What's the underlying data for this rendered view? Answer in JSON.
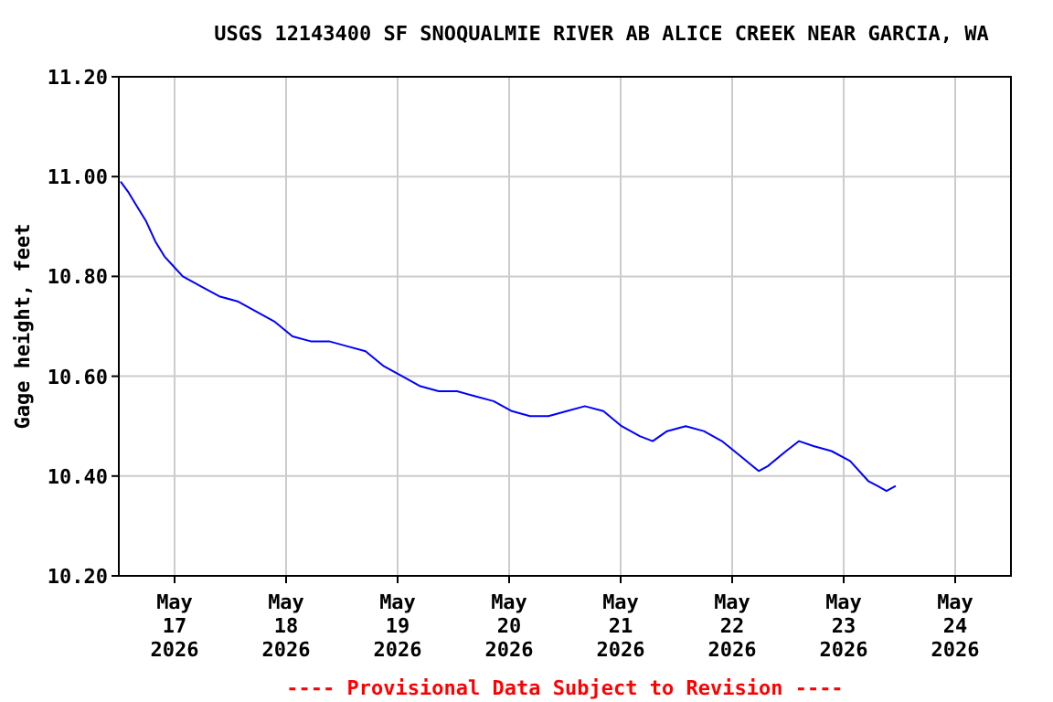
{
  "chart_data": {
    "type": "line",
    "title": "USGS 12143400 SF SNOQUALMIE RIVER AB ALICE CREEK NEAR GARCIA, WA",
    "ylabel": "Gage height, feet",
    "annotations": [
      "---- Provisional Data Subject to Revision ----"
    ],
    "xlim": [
      "2026-05-16T12:00",
      "2026-05-24T12:00"
    ],
    "xticks": [
      {
        "value": "2026-05-17",
        "label": "May\n17\n2026"
      },
      {
        "value": "2026-05-18",
        "label": "May\n18\n2026"
      },
      {
        "value": "2026-05-19",
        "label": "May\n19\n2026"
      },
      {
        "value": "2026-05-20",
        "label": "May\n20\n2026"
      },
      {
        "value": "2026-05-21",
        "label": "May\n21\n2026"
      },
      {
        "value": "2026-05-22",
        "label": "May\n22\n2026"
      },
      {
        "value": "2026-05-23",
        "label": "May\n23\n2026"
      },
      {
        "value": "2026-05-24",
        "label": "May\n24\n2026"
      }
    ],
    "ylim": [
      10.2,
      11.2
    ],
    "yticks": [
      {
        "value": 10.2,
        "label": "10.20"
      },
      {
        "value": 10.4,
        "label": "10.40"
      },
      {
        "value": 10.6,
        "label": "10.60"
      },
      {
        "value": 10.8,
        "label": "10.80"
      },
      {
        "value": 11.0,
        "label": "11.00"
      },
      {
        "value": 11.2,
        "label": "11.20"
      }
    ],
    "grid": true,
    "marker": "none",
    "line_style": "solid",
    "series": [
      {
        "color": "#0000ff",
        "x": [
          "2026-05-16T12:23",
          "2026-05-16T13:58",
          "2026-05-16T15:56",
          "2026-05-16T17:54",
          "2026-05-16T19:52",
          "2026-05-16T21:50",
          "2026-05-16T23:48",
          "2026-05-17T01:46",
          "2026-05-17T03:44",
          "2026-05-17T05:42",
          "2026-05-17T09:38",
          "2026-05-17T13:34",
          "2026-05-17T17:30",
          "2026-05-17T21:26",
          "2026-05-18T01:23",
          "2026-05-18T05:18",
          "2026-05-18T09:15",
          "2026-05-18T13:12",
          "2026-05-18T17:06",
          "2026-05-18T21:03",
          "2026-05-19T01:00",
          "2026-05-19T04:54",
          "2026-05-19T08:51",
          "2026-05-19T12:48",
          "2026-05-19T16:42",
          "2026-05-19T20:40",
          "2026-05-20T00:36",
          "2026-05-20T04:30",
          "2026-05-20T08:28",
          "2026-05-20T12:24",
          "2026-05-20T16:18",
          "2026-05-20T20:18",
          "2026-05-21T00:12",
          "2026-05-21T04:06",
          "2026-05-21T06:54",
          "2026-05-21T10:00",
          "2026-05-21T14:00",
          "2026-05-21T17:54",
          "2026-05-21T21:48",
          "2026-05-22T01:48",
          "2026-05-22T05:42",
          "2026-05-22T07:42",
          "2026-05-22T11:36",
          "2026-05-22T14:24",
          "2026-05-22T17:30",
          "2026-05-22T21:24",
          "2026-05-23T01:24",
          "2026-05-23T05:18",
          "2026-05-23T07:18",
          "2026-05-23T09:12",
          "2026-05-23T11:12"
        ],
        "values": [
          10.99,
          10.97,
          10.94,
          10.91,
          10.87,
          10.84,
          10.82,
          10.8,
          10.79,
          10.78,
          10.76,
          10.75,
          10.73,
          10.71,
          10.68,
          10.67,
          10.67,
          10.66,
          10.65,
          10.62,
          10.6,
          10.58,
          10.57,
          10.57,
          10.56,
          10.55,
          10.53,
          10.52,
          10.52,
          10.53,
          10.54,
          10.53,
          10.5,
          10.48,
          10.47,
          10.49,
          10.5,
          10.49,
          10.47,
          10.44,
          10.41,
          10.42,
          10.45,
          10.47,
          10.46,
          10.45,
          10.43,
          10.39,
          10.38,
          10.37,
          10.38
        ]
      }
    ]
  }
}
